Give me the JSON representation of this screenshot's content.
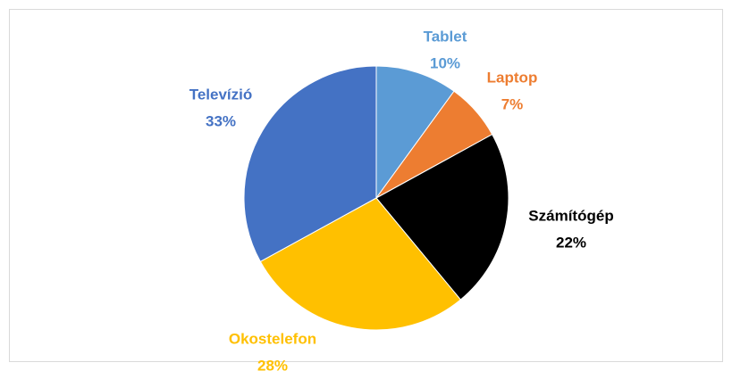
{
  "chart_data": {
    "type": "pie",
    "categories": [
      "Tablet",
      "Laptop",
      "Számítógép",
      "Okostelefon",
      "Televízió"
    ],
    "values": [
      10,
      7,
      22,
      28,
      33
    ],
    "value_labels": [
      "10%",
      "7%",
      "22%",
      "28%",
      "33%"
    ],
    "colors": [
      "#5b9bd5",
      "#ed7d31",
      "#000000",
      "#ffc000",
      "#4472c4"
    ]
  }
}
